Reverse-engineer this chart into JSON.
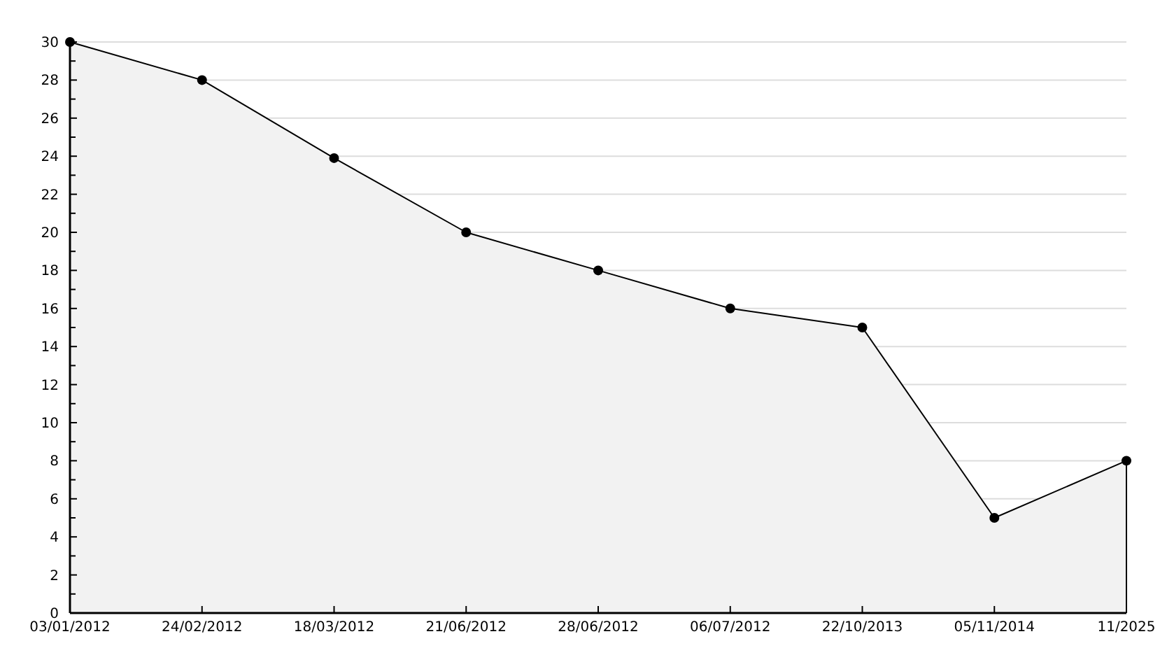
{
  "chart_data": {
    "type": "area",
    "categories": [
      "03/01/2012",
      "24/02/2012",
      "18/03/2012",
      "21/06/2012",
      "28/06/2012",
      "06/07/2012",
      "22/10/2013",
      "05/11/2014",
      "11/2025"
    ],
    "series": [
      {
        "color": "#000000",
        "values": [
          30,
          28,
          23.9,
          20,
          18,
          16,
          15,
          5,
          8
        ]
      }
    ],
    "ylim": [
      0,
      30
    ],
    "yticks": [
      0,
      {
        "value": 1,
        "label": null
      },
      2,
      {
        "value": 3,
        "label": null
      },
      4,
      {
        "value": 5,
        "label": null
      },
      6,
      {
        "value": 7,
        "label": null
      },
      8,
      {
        "value": 9,
        "label": null
      },
      10,
      {
        "value": 11,
        "label": null
      },
      12,
      {
        "value": 13,
        "label": null
      },
      14,
      {
        "value": 15,
        "label": null
      },
      16,
      {
        "value": 17,
        "label": null
      },
      18,
      {
        "value": 19,
        "label": null
      },
      20,
      {
        "value": 21,
        "label": null
      },
      22,
      {
        "value": 23,
        "label": null
      },
      24,
      {
        "value": 25,
        "label": null
      },
      26,
      {
        "value": 27,
        "label": null
      },
      28,
      {
        "value": 29,
        "label": null
      },
      30
    ],
    "grid": "y",
    "marker": "circle",
    "line_style": "solid"
  }
}
